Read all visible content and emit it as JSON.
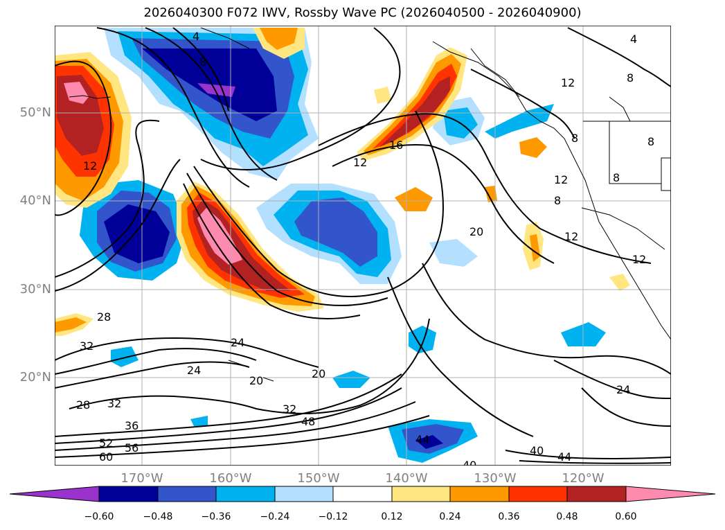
{
  "title": "2026040300 F072 IWV, Rossby Wave PC (2026040500 - 2026040900)",
  "lat_labels": [
    "50°N",
    "40°N",
    "30°N",
    "20°N"
  ],
  "lon_labels": [
    "170°W",
    "160°W",
    "150°W",
    "140°W",
    "130°W",
    "120°W"
  ],
  "colorbar": {
    "ticks": [
      "−0.60",
      "−0.48",
      "−0.36",
      "−0.24",
      "−0.12",
      "0.12",
      "0.24",
      "0.36",
      "0.48",
      "0.60"
    ],
    "colors": [
      "#9933cc",
      "#000099",
      "#3355cc",
      "#00b3f0",
      "#b3e0ff",
      "#ffffff",
      "#ffe680",
      "#ff9900",
      "#ff3300",
      "#b32222",
      "#ff8ab0"
    ]
  },
  "contour_labels": [
    "4",
    "8",
    "12",
    "16",
    "20",
    "24",
    "28",
    "32",
    "36",
    "40",
    "44",
    "48",
    "52",
    "56",
    "60"
  ]
}
